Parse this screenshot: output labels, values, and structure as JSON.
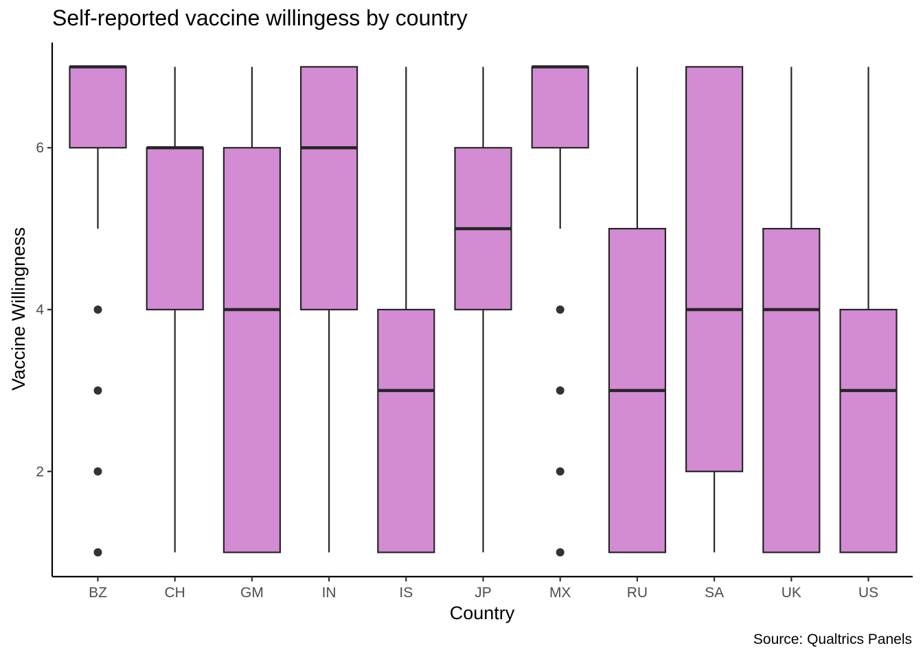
{
  "chart_data": {
    "type": "box",
    "title": "Self-reported vaccine willingess by country",
    "xlabel": "Country",
    "ylabel": "Vaccine Willingness",
    "caption": "Source: Qualtrics Panels",
    "ylim": [
      0.7,
      7.3
    ],
    "yticks": [
      2,
      4,
      6
    ],
    "grid": false,
    "fill_color": "#d38bd3",
    "line_color": "#262626",
    "categories": [
      "BZ",
      "CH",
      "GM",
      "IN",
      "IS",
      "JP",
      "MX",
      "RU",
      "SA",
      "UK",
      "US"
    ],
    "boxes": [
      {
        "category": "BZ",
        "whisker_low": 5,
        "q1": 6,
        "median": 7,
        "q3": 7,
        "whisker_high": 7,
        "outliers": [
          4,
          3,
          2,
          1
        ]
      },
      {
        "category": "CH",
        "whisker_low": 1,
        "q1": 4,
        "median": 6,
        "q3": 6,
        "whisker_high": 7,
        "outliers": []
      },
      {
        "category": "GM",
        "whisker_low": 1,
        "q1": 1,
        "median": 4,
        "q3": 6,
        "whisker_high": 7,
        "outliers": []
      },
      {
        "category": "IN",
        "whisker_low": 1,
        "q1": 4,
        "median": 6,
        "q3": 7,
        "whisker_high": 7,
        "outliers": []
      },
      {
        "category": "IS",
        "whisker_low": 1,
        "q1": 1,
        "median": 3,
        "q3": 4,
        "whisker_high": 7,
        "outliers": []
      },
      {
        "category": "JP",
        "whisker_low": 1,
        "q1": 4,
        "median": 5,
        "q3": 6,
        "whisker_high": 7,
        "outliers": []
      },
      {
        "category": "MX",
        "whisker_low": 5,
        "q1": 6,
        "median": 7,
        "q3": 7,
        "whisker_high": 7,
        "outliers": [
          4,
          3,
          2,
          1
        ]
      },
      {
        "category": "RU",
        "whisker_low": 1,
        "q1": 1,
        "median": 3,
        "q3": 5,
        "whisker_high": 7,
        "outliers": []
      },
      {
        "category": "SA",
        "whisker_low": 1,
        "q1": 2,
        "median": 4,
        "q3": 7,
        "whisker_high": 7,
        "outliers": []
      },
      {
        "category": "UK",
        "whisker_low": 1,
        "q1": 1,
        "median": 4,
        "q3": 5,
        "whisker_high": 7,
        "outliers": []
      },
      {
        "category": "US",
        "whisker_low": 1,
        "q1": 1,
        "median": 3,
        "q3": 4,
        "whisker_high": 7,
        "outliers": []
      }
    ]
  }
}
